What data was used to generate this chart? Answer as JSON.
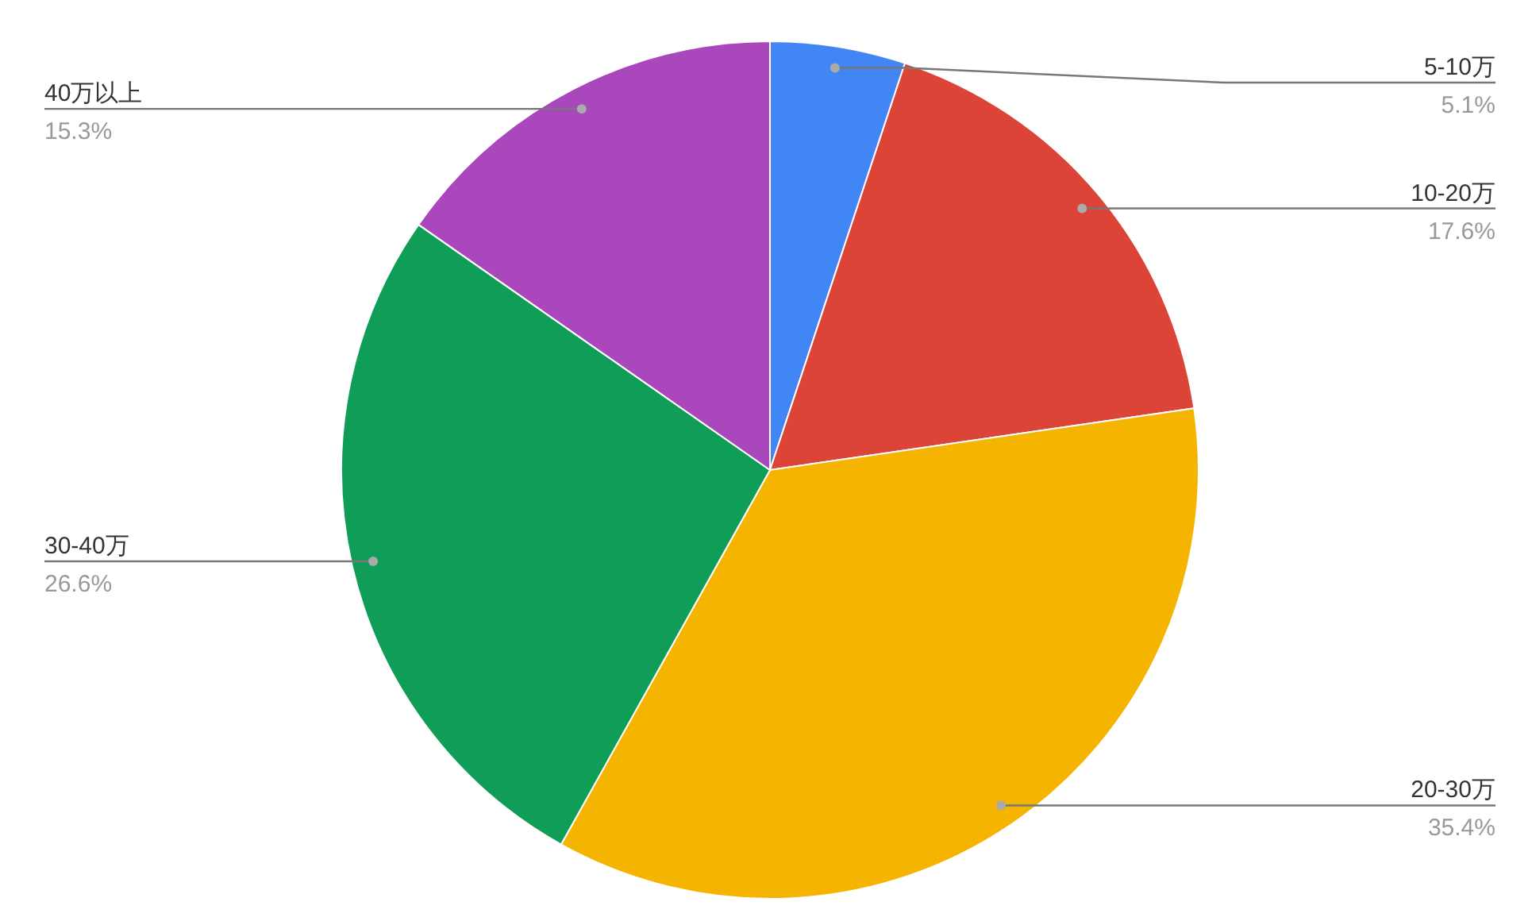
{
  "chart_data": {
    "type": "pie",
    "categories": [
      "5-10万",
      "10-20万",
      "20-30万",
      "30-40万",
      "40万以上"
    ],
    "values": [
      5.1,
      17.6,
      35.4,
      26.6,
      15.3
    ],
    "value_labels": [
      "5.1%",
      "17.6%",
      "35.4%",
      "26.6%",
      "15.3%"
    ],
    "colors": [
      "#4285f4",
      "#db4437",
      "#f4b400",
      "#0f9d58",
      "#ab47bc"
    ],
    "legend": false
  }
}
